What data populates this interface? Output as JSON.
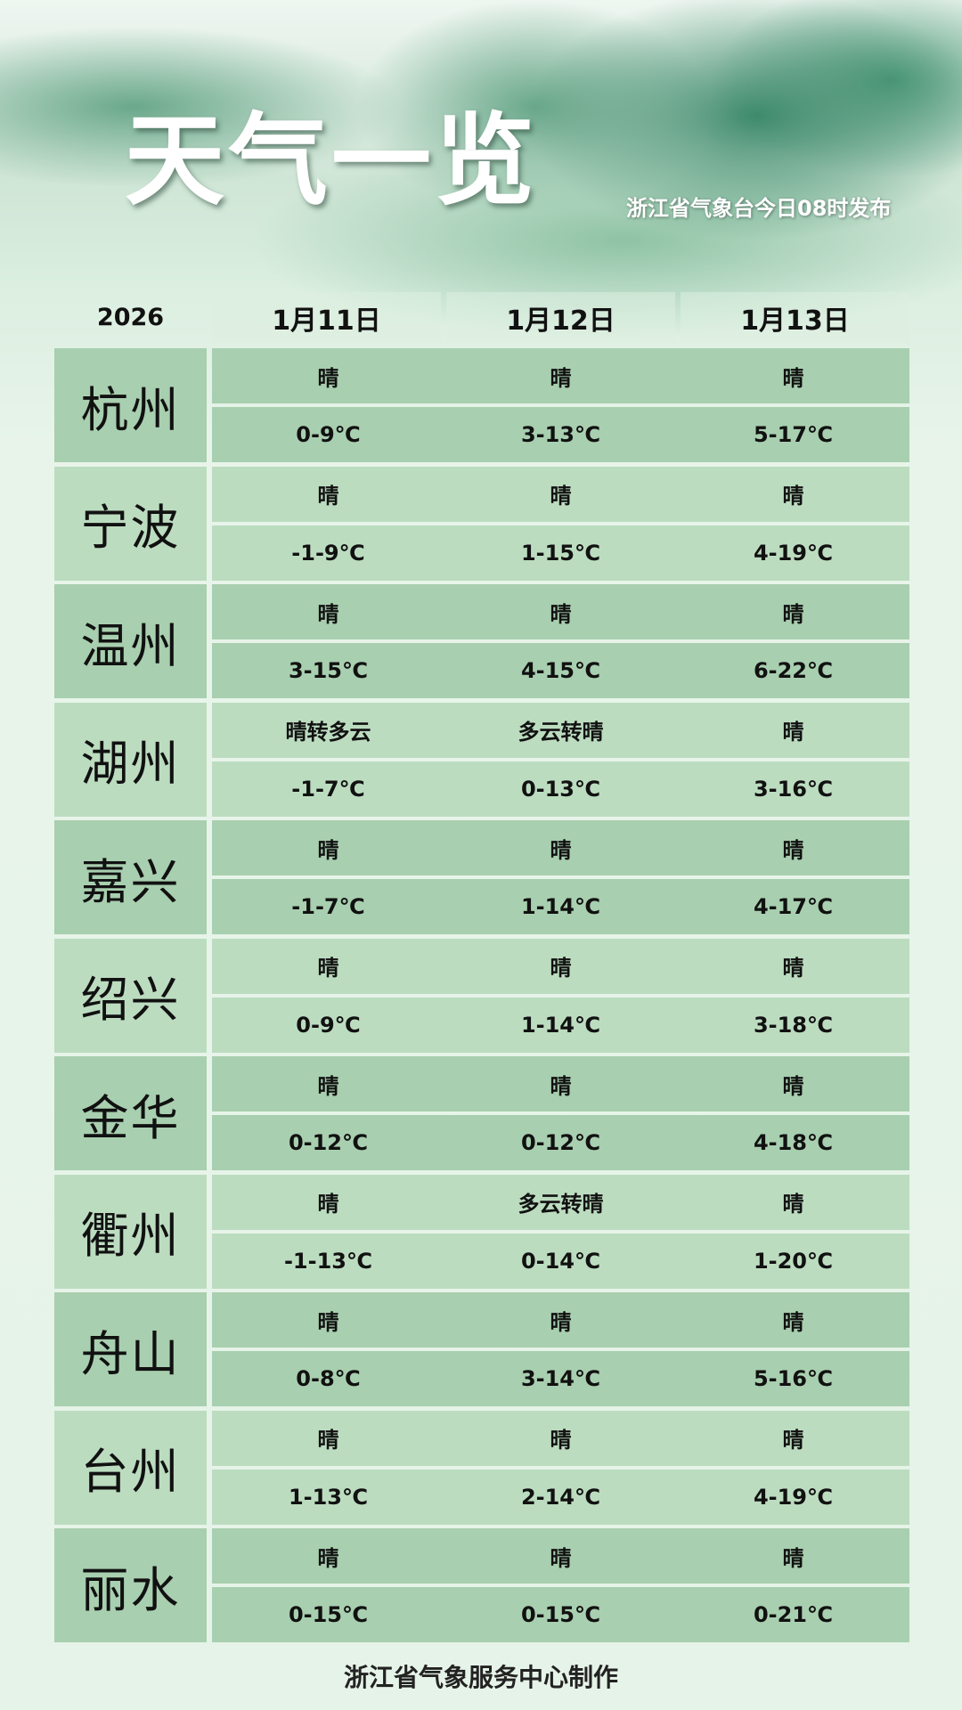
{
  "header": {
    "title": "天气一览",
    "subtitle": "浙江省气象台今日08时发布"
  },
  "table": {
    "year": "2026",
    "dates": [
      "1月11日",
      "1月12日",
      "1月13日"
    ],
    "rows": [
      {
        "city": "杭州",
        "weather": [
          "晴",
          "晴",
          "晴"
        ],
        "temp": [
          "0-9℃",
          "3-13℃",
          "5-17℃"
        ]
      },
      {
        "city": "宁波",
        "weather": [
          "晴",
          "晴",
          "晴"
        ],
        "temp": [
          "-1-9℃",
          "1-15℃",
          "4-19℃"
        ]
      },
      {
        "city": "温州",
        "weather": [
          "晴",
          "晴",
          "晴"
        ],
        "temp": [
          "3-15℃",
          "4-15℃",
          "6-22℃"
        ]
      },
      {
        "city": "湖州",
        "weather": [
          "晴转多云",
          "多云转晴",
          "晴"
        ],
        "temp": [
          "-1-7℃",
          "0-13℃",
          "3-16℃"
        ]
      },
      {
        "city": "嘉兴",
        "weather": [
          "晴",
          "晴",
          "晴"
        ],
        "temp": [
          "-1-7℃",
          "1-14℃",
          "4-17℃"
        ]
      },
      {
        "city": "绍兴",
        "weather": [
          "晴",
          "晴",
          "晴"
        ],
        "temp": [
          "0-9℃",
          "1-14℃",
          "3-18℃"
        ]
      },
      {
        "city": "金华",
        "weather": [
          "晴",
          "晴",
          "晴"
        ],
        "temp": [
          "0-12℃",
          "0-12℃",
          "4-18℃"
        ]
      },
      {
        "city": "衢州",
        "weather": [
          "晴",
          "多云转晴",
          "晴"
        ],
        "temp": [
          "-1-13℃",
          "0-14℃",
          "1-20℃"
        ]
      },
      {
        "city": "舟山",
        "weather": [
          "晴",
          "晴",
          "晴"
        ],
        "temp": [
          "0-8℃",
          "3-14℃",
          "5-16℃"
        ]
      },
      {
        "city": "台州",
        "weather": [
          "晴",
          "晴",
          "晴"
        ],
        "temp": [
          "1-13℃",
          "2-14℃",
          "4-19℃"
        ]
      },
      {
        "city": "丽水",
        "weather": [
          "晴",
          "晴",
          "晴"
        ],
        "temp": [
          "0-15℃",
          "0-15℃",
          "0-21℃"
        ]
      }
    ]
  },
  "footer": "浙江省气象服务中心制作",
  "colors": {
    "row_dark": "#a8cfaf",
    "row_light": "#bcdcc0"
  }
}
